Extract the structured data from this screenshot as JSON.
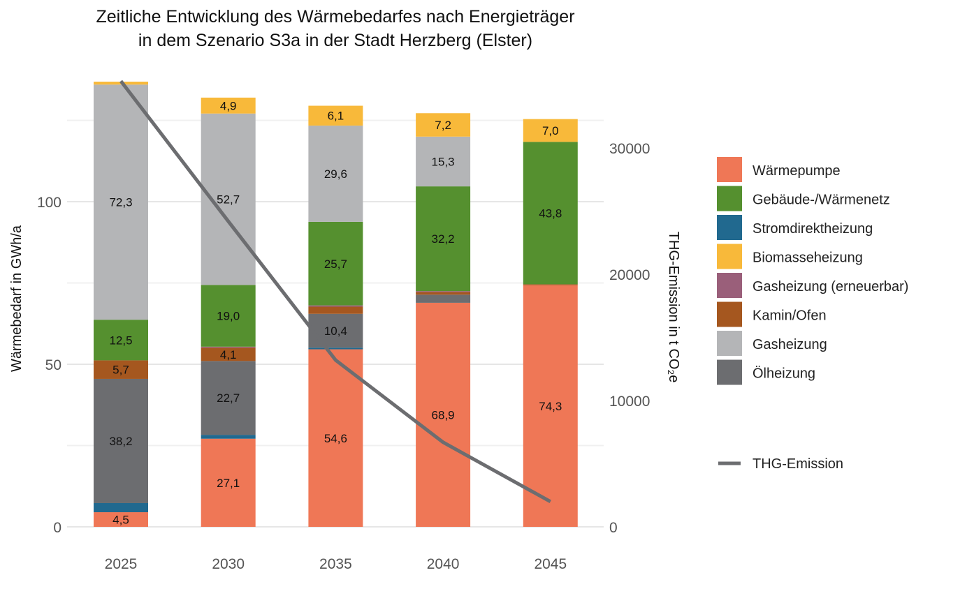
{
  "chart_data": {
    "type": "bar",
    "stacked": true,
    "title": [
      "Zeitliche Entwicklung des Wärmebedarfes nach Energieträger",
      "in dem Szenario S3a in der Stadt Herzberg (Elster)"
    ],
    "xlabel": "",
    "ylabel": "Wärmebedarf in GWh/a",
    "y2label": "THG-Emission in t CO₂e",
    "ylim": [
      0,
      140
    ],
    "y2lim": [
      0,
      36050
    ],
    "yticks": [
      0,
      50,
      100
    ],
    "y2ticks": [
      0,
      10000,
      20000,
      30000
    ],
    "grid": true,
    "legend_position": "right",
    "categories": [
      "2025",
      "2030",
      "2035",
      "2040",
      "2045"
    ],
    "series": [
      {
        "name": "Wärmepumpe",
        "color": "#EF7756",
        "values": [
          4.5,
          27.1,
          54.6,
          68.9,
          74.3
        ],
        "labeled": [
          true,
          true,
          true,
          true,
          true
        ]
      },
      {
        "name": "Stromdirektheizung",
        "color": "#21698F",
        "values": [
          2.8,
          1.2,
          0.5,
          0,
          0
        ],
        "labeled": [
          false,
          false,
          false,
          false,
          false
        ]
      },
      {
        "name": "Ölheizung",
        "color": "#6C6D70",
        "values": [
          38.2,
          22.7,
          10.4,
          2.5,
          0
        ],
        "labeled": [
          true,
          true,
          true,
          false,
          false
        ]
      },
      {
        "name": "Kamin/Ofen",
        "color": "#A5571F",
        "values": [
          5.7,
          4.1,
          2.2,
          0.8,
          0.3
        ],
        "labeled": [
          true,
          true,
          false,
          false,
          false
        ]
      },
      {
        "name": "Gasheizung (erneuerbar)",
        "color": "#9A5F7A",
        "values": [
          0,
          0.3,
          0.4,
          0.3,
          0
        ],
        "labeled": [
          false,
          false,
          false,
          false,
          false
        ]
      },
      {
        "name": "Gebäude-/Wärmenetz",
        "color": "#55902F",
        "values": [
          12.5,
          19.0,
          25.7,
          32.2,
          43.8
        ],
        "labeled": [
          true,
          true,
          true,
          true,
          true
        ]
      },
      {
        "name": "Gasheizung",
        "color": "#B4B5B7",
        "values": [
          72.3,
          52.7,
          29.6,
          15.3,
          0
        ],
        "labeled": [
          true,
          true,
          true,
          true,
          false
        ]
      },
      {
        "name": "Biomasseheizung",
        "color": "#F8B93A",
        "values": [
          0.9,
          4.9,
          6.1,
          7.2,
          7.0
        ],
        "labeled": [
          false,
          true,
          true,
          true,
          true
        ]
      }
    ],
    "legend_order": [
      "Wärmepumpe",
      "Gebäude-/Wärmenetz",
      "Stromdirektheizung",
      "Biomasseheizung",
      "Gasheizung (erneuerbar)",
      "Kamin/Ofen",
      "Gasheizung",
      "Ölheizung"
    ],
    "line": {
      "name": "THG-Emission",
      "color": "#6C6D70",
      "values": [
        35300,
        24200,
        13200,
        6700,
        2000
      ]
    }
  }
}
